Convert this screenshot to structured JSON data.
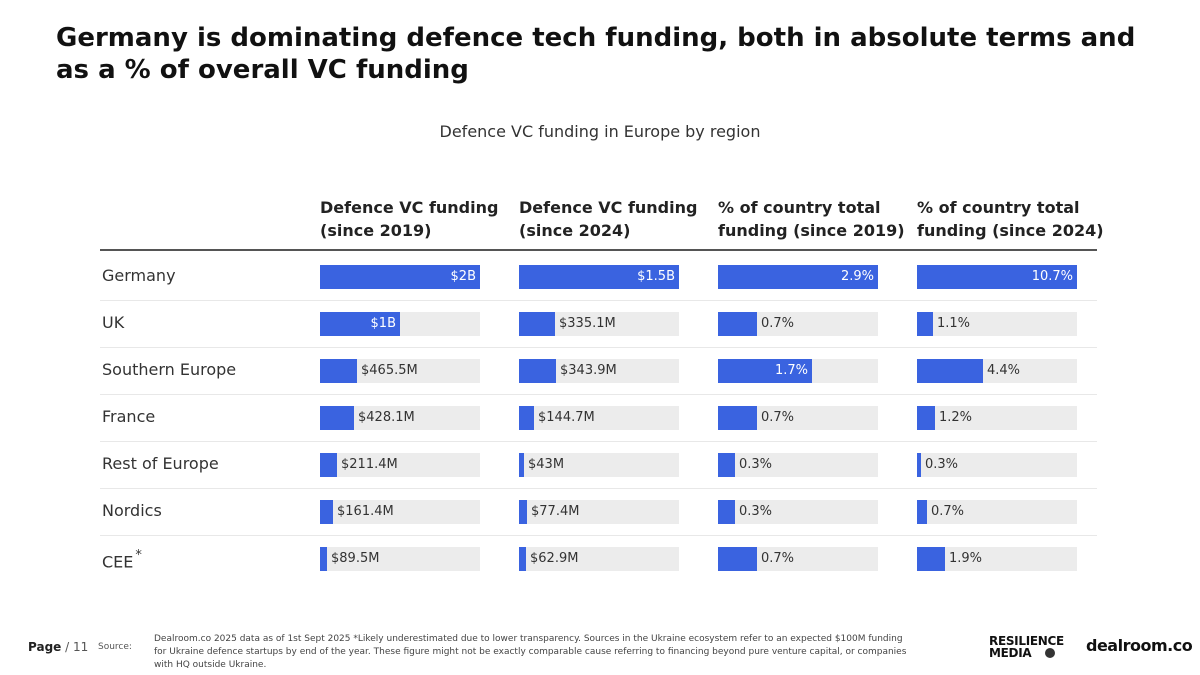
{
  "headline": "Germany is dominating defence tech funding, both in absolute terms and as a % of overall VC funding",
  "colors": {
    "bar": "#3a63e0",
    "track": "#ececec"
  },
  "chart_data": {
    "type": "table",
    "title": "Defence  VC funding in Europe by region",
    "columns": [
      {
        "header": "Defence VC funding (since 2019)",
        "max": 2000
      },
      {
        "header": "Defence VC funding (since 2024)",
        "max": 1500
      },
      {
        "header": "% of country total funding (since 2019)",
        "max": 2.9
      },
      {
        "header": "% of country total funding (since 2024)",
        "max": 10.7
      }
    ],
    "rows": [
      {
        "region": "Germany",
        "note": "",
        "values": [
          2000,
          1500,
          2.9,
          10.7
        ],
        "labels": [
          "$2B",
          "$1.5B",
          "2.9%",
          "10.7%"
        ]
      },
      {
        "region": "UK",
        "note": "",
        "values": [
          1000,
          335.1,
          0.7,
          1.1
        ],
        "labels": [
          "$1B",
          "$335.1M",
          "0.7%",
          "1.1%"
        ]
      },
      {
        "region": "Southern Europe",
        "note": "",
        "values": [
          465.5,
          343.9,
          1.7,
          4.4
        ],
        "labels": [
          "$465.5M",
          "$343.9M",
          "1.7%",
          "4.4%"
        ]
      },
      {
        "region": "France",
        "note": "",
        "values": [
          428.1,
          144.7,
          0.7,
          1.2
        ],
        "labels": [
          "$428.1M",
          "$144.7M",
          "0.7%",
          "1.2%"
        ]
      },
      {
        "region": "Rest of Europe",
        "note": "",
        "values": [
          211.4,
          43,
          0.3,
          0.3
        ],
        "labels": [
          "$211.4M",
          "$43M",
          "0.3%",
          "0.3%"
        ]
      },
      {
        "region": "Nordics",
        "note": "",
        "values": [
          161.4,
          77.4,
          0.3,
          0.7
        ],
        "labels": [
          "$161.4M",
          "$77.4M",
          "0.3%",
          "0.7%"
        ]
      },
      {
        "region": "CEE",
        "note": "*",
        "values": [
          89.5,
          62.9,
          0.7,
          1.9
        ],
        "labels": [
          "$89.5M",
          "$62.9M",
          "0.7%",
          "1.9%"
        ]
      }
    ]
  },
  "footer": {
    "page_label": "Page",
    "page_number": "/ 11",
    "source_label": "Source:",
    "source_text": "Dealroom.co    2025 data as of 1st Sept 2025   *Likely underestimated due to lower transparency. Sources in the Ukraine ecosystem refer to an expected $100M funding for Ukraine defence startups by end of the year. These figure might not be exactly comparable cause referring to financing beyond pure venture capital, or companies with HQ outside Ukraine.",
    "logo_resilience_line1": "RESILIENCE",
    "logo_resilience_line2": "MEDIA",
    "logo_dealroom": "dealroom.co"
  }
}
